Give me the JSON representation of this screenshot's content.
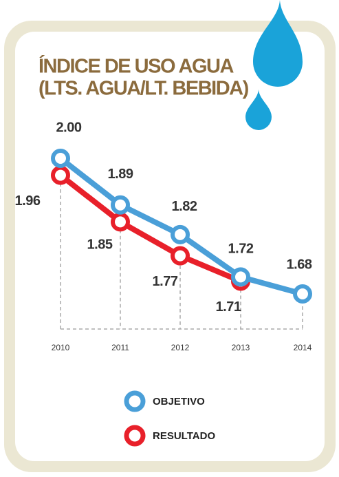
{
  "chart_data": {
    "type": "line",
    "title": "ÍNDICE DE USO AGUA",
    "subtitle": "(LTS. AGUA/LT. BEBIDA)",
    "categories": [
      "2010",
      "2011",
      "2012",
      "2013",
      "2014"
    ],
    "series": [
      {
        "name": "OBJETIVO",
        "color": "#4a9fd8",
        "values": [
          2.0,
          1.89,
          1.82,
          1.72,
          1.68
        ],
        "value_labels": [
          "2.00",
          "1.89",
          "1.82",
          "1.72",
          "1.68"
        ]
      },
      {
        "name": "RESULTADO",
        "color": "#e8202a",
        "values": [
          1.96,
          1.85,
          1.77,
          1.71,
          null
        ],
        "value_labels": [
          "1.96",
          "1.85",
          "1.77",
          "1.71",
          null
        ]
      }
    ]
  }
}
